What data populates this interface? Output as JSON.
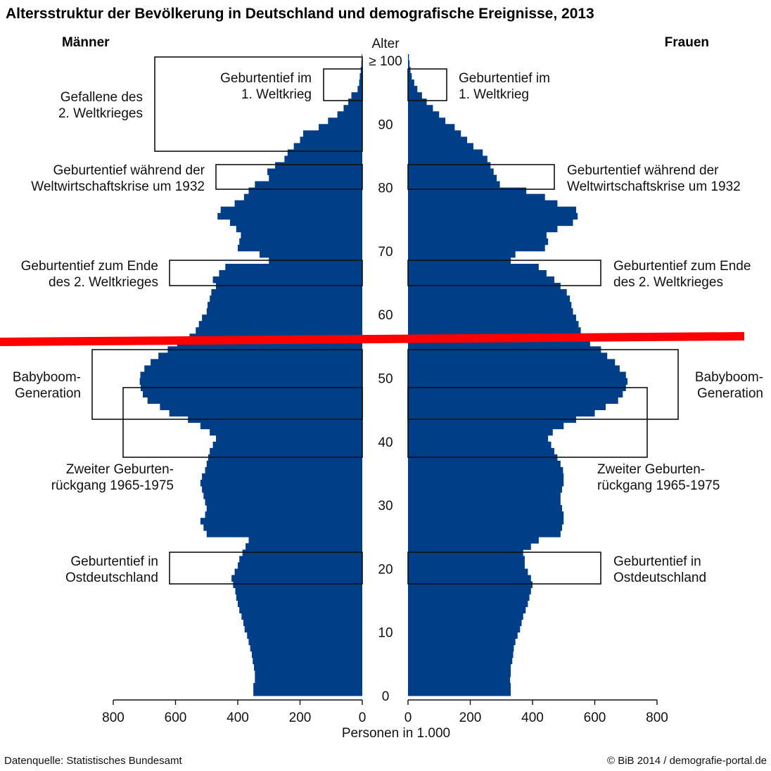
{
  "title": "Altersstruktur der Bevölkerung in Deutschland und demografische Ereignisse, 2013",
  "label_men": "Männer",
  "label_women": "Frauen",
  "axis_age_label": "Alter",
  "age_ticks": [
    "0",
    "10",
    "20",
    "30",
    "40",
    "50",
    "60",
    "70",
    "80",
    "90",
    "≥ 100"
  ],
  "x_ticks_left": [
    "800",
    "600",
    "400",
    "200",
    "0"
  ],
  "x_ticks_right": [
    "0",
    "200",
    "400",
    "600",
    "800"
  ],
  "xlabel": "Personen in 1.000",
  "source": "Datenquelle: Statistisches Bundesamt",
  "copyright": "© BiB 2014 / demografie-portal.de",
  "annotations": {
    "ww1_men": [
      "Geburtentief im",
      "1. Weltkrieg"
    ],
    "ww1_women": [
      "Geburtentief im",
      "1. Weltkrieg"
    ],
    "fallen": [
      "Gefallene des",
      "2. Weltkrieges"
    ],
    "crisis_men": [
      "Geburtentief während der",
      "Weltwirtschaftskrise um 1932"
    ],
    "crisis_women": [
      "Geburtentief während der",
      "Weltwirtschaftskrise um 1932"
    ],
    "ww2end_men": [
      "Geburtentief zum Ende",
      "des 2. Weltkrieges"
    ],
    "ww2end_women": [
      "Geburtentief zum Ende",
      "des 2. Weltkrieges"
    ],
    "babyboom_men": [
      "Babyboom-",
      "Generation"
    ],
    "babyboom_women": [
      "Babyboom-",
      "Generation"
    ],
    "decline_men": [
      "Zweiter Geburten-",
      "rückgang 1965-1975"
    ],
    "decline_women": [
      "Zweiter Geburten-",
      "rückgang 1965-1975"
    ],
    "east_men": [
      "Geburtentief in",
      "Ostdeutschland"
    ],
    "east_women": [
      "Geburtentief in",
      "Ostdeutschland"
    ]
  },
  "colors": {
    "bars": "#003f87",
    "overlay_line": "#ff0000"
  },
  "chart_data": {
    "type": "bar",
    "orientation": "horizontal-pyramid",
    "age_range": [
      0,
      100
    ],
    "xlim": [
      0,
      800
    ],
    "series": [
      {
        "name": "Männer",
        "values": [
          350,
          350,
          345,
          345,
          348,
          352,
          355,
          360,
          365,
          370,
          378,
          382,
          388,
          395,
          400,
          405,
          408,
          415,
          420,
          410,
          400,
          395,
          385,
          375,
          365,
          500,
          510,
          520,
          505,
          500,
          505,
          510,
          515,
          520,
          515,
          505,
          500,
          495,
          490,
          480,
          470,
          490,
          520,
          560,
          620,
          650,
          690,
          705,
          712,
          715,
          713,
          700,
          680,
          655,
          625,
          595,
          555,
          535,
          525,
          515,
          500,
          497,
          490,
          485,
          470,
          480,
          460,
          440,
          300,
          330,
          400,
          395,
          390,
          405,
          425,
          465,
          455,
          410,
          380,
          365,
          345,
          300,
          305,
          280,
          250,
          240,
          220,
          200,
          190,
          140,
          110,
          80,
          60,
          45,
          35,
          15,
          10,
          8,
          5,
          3,
          2
        ]
      },
      {
        "name": "Frauen",
        "values": [
          330,
          330,
          328,
          330,
          330,
          335,
          338,
          340,
          345,
          352,
          360,
          365,
          370,
          378,
          385,
          390,
          395,
          400,
          395,
          385,
          375,
          375,
          370,
          395,
          420,
          490,
          495,
          500,
          500,
          495,
          490,
          490,
          495,
          500,
          500,
          498,
          490,
          480,
          470,
          460,
          450,
          465,
          500,
          540,
          600,
          635,
          675,
          690,
          700,
          705,
          700,
          680,
          665,
          640,
          620,
          585,
          565,
          555,
          548,
          540,
          530,
          525,
          520,
          510,
          490,
          470,
          445,
          420,
          330,
          345,
          440,
          450,
          445,
          480,
          530,
          545,
          540,
          480,
          440,
          380,
          295,
          285,
          275,
          265,
          255,
          240,
          210,
          190,
          170,
          150,
          120,
          100,
          80,
          60,
          45,
          30,
          20,
          12,
          8,
          5,
          3
        ]
      }
    ]
  }
}
